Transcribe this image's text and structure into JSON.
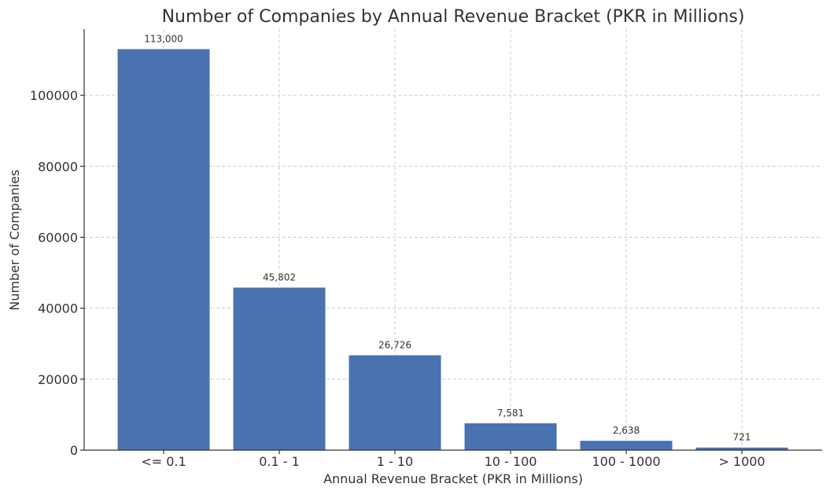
{
  "chart_data": {
    "type": "bar",
    "title": "Number of Companies by Annual Revenue Bracket (PKR in Millions)",
    "xlabel": "Annual Revenue Bracket (PKR in Millions)",
    "ylabel": "Number of Companies",
    "categories": [
      "<= 0.1",
      "0.1 - 1",
      "1 - 10",
      "10 - 100",
      "100 - 1000",
      "> 1000"
    ],
    "values": [
      113000,
      45802,
      26726,
      7581,
      2638,
      721
    ],
    "value_labels": [
      "113,000",
      "45,802",
      "26,726",
      "7,581",
      "2,638",
      "721"
    ],
    "ylim": [
      0,
      118650
    ],
    "yticks": [
      0,
      20000,
      40000,
      60000,
      80000,
      100000
    ],
    "ytick_labels": [
      "0",
      "20000",
      "40000",
      "60000",
      "80000",
      "100000"
    ],
    "grid": true,
    "bar_color": "#4a72b0"
  }
}
